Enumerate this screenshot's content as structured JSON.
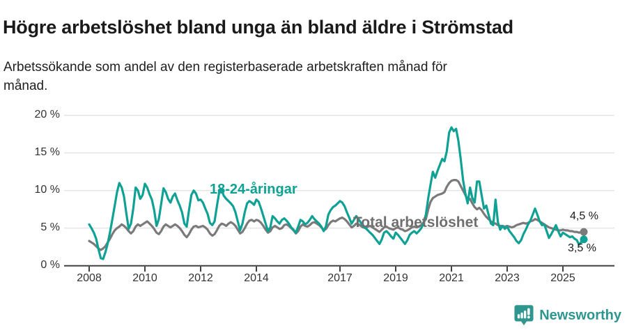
{
  "header": {
    "title": "Högre arbetslöshet bland unga än bland äldre i Strömstad",
    "subtitle_lines": [
      "Arbetssökande som andel av den registerbaserade arbetskraften månad för",
      "månad."
    ]
  },
  "chart_data": {
    "type": "line",
    "title": "Högre arbetslöshet bland unga än bland äldre i Strömstad",
    "subtitle": "Arbetssökande som andel av den registerbaserade arbetskraften månad för månad.",
    "unit": "%",
    "x_start": "2008-01",
    "x_end": "2025-10",
    "x_frequency": "monthly",
    "ylim": [
      0,
      20
    ],
    "yticks": [
      0,
      5,
      10,
      15,
      20
    ],
    "ytick_labels": [
      "0 %",
      "5 %",
      "10 %",
      "15 %",
      "20 %"
    ],
    "xticks": [
      2008,
      2010,
      2012,
      2014,
      2017,
      2019,
      2021,
      2023,
      2025
    ],
    "grid": "horizontal",
    "legend_position": "inline-labels",
    "axis_color": "#404040",
    "grid_color": "#dedede",
    "series": [
      {
        "name": "18-24-åringar",
        "color": "#0fa294",
        "end_label": "3,5 %",
        "end_value": 3.5,
        "values": [
          5.5,
          5.0,
          4.4,
          3.6,
          2.2,
          1.0,
          0.9,
          1.8,
          3.0,
          4.5,
          6.2,
          8.0,
          9.8,
          11.0,
          10.4,
          9.2,
          7.0,
          4.9,
          5.6,
          7.6,
          10.4,
          10.0,
          8.9,
          9.4,
          10.9,
          10.4,
          9.5,
          8.8,
          7.4,
          5.3,
          6.2,
          8.2,
          10.3,
          9.8,
          8.9,
          8.4,
          9.2,
          9.6,
          8.7,
          8.0,
          7.1,
          5.6,
          5.2,
          7.4,
          9.4,
          10.0,
          9.6,
          8.7,
          8.8,
          8.4,
          7.6,
          6.9,
          5.7,
          5.4,
          5.9,
          7.9,
          9.8,
          10.1,
          9.3,
          8.9,
          8.6,
          8.3,
          7.9,
          7.1,
          5.9,
          4.7,
          5.6,
          7.1,
          8.3,
          8.6,
          8.4,
          8.1,
          8.8,
          8.5,
          7.6,
          6.6,
          5.6,
          4.6,
          5.1,
          6.6,
          6.3,
          5.9,
          5.6,
          6.1,
          6.3,
          6.0,
          5.6,
          5.1,
          4.8,
          4.4,
          5.2,
          6.1,
          5.9,
          5.5,
          5.7,
          6.1,
          6.6,
          6.2,
          5.9,
          5.6,
          5.2,
          4.6,
          5.3,
          6.8,
          7.4,
          7.8,
          8.0,
          8.3,
          8.6,
          8.4,
          7.9,
          7.1,
          6.4,
          5.6,
          6.1,
          6.6,
          6.2,
          5.7,
          5.3,
          5.0,
          4.7,
          4.4,
          4.1,
          3.7,
          3.3,
          2.9,
          3.5,
          4.4,
          4.6,
          4.3,
          3.9,
          3.6,
          4.4,
          4.1,
          3.7,
          3.3,
          2.9,
          3.4,
          4.1,
          4.4,
          4.6,
          4.3,
          4.6,
          5.0,
          5.6,
          6.8,
          9.0,
          10.8,
          12.5,
          11.7,
          12.6,
          13.4,
          14.2,
          13.9,
          15.2,
          17.7,
          18.4,
          17.9,
          18.2,
          16.6,
          14.2,
          11.4,
          9.6,
          8.3,
          10.4,
          9.0,
          8.4,
          11.2,
          11.2,
          9.4,
          7.6,
          8.0,
          6.8,
          5.6,
          5.4,
          8.8,
          5.8,
          4.8,
          5.3,
          4.9,
          5.2,
          4.6,
          4.2,
          3.8,
          3.3,
          3.0,
          3.4,
          4.2,
          4.8,
          5.5,
          6.0,
          6.8,
          7.6,
          6.8,
          5.9,
          5.4,
          5.5,
          4.6,
          3.7,
          4.2,
          4.8,
          5.4,
          4.6,
          3.9,
          4.4,
          4.2,
          4.0,
          3.8,
          3.9,
          3.6,
          3.4,
          2.8,
          3.2,
          3.5
        ]
      },
      {
        "name": "Total arbetslöshet",
        "color": "#7a7a7a",
        "end_label": "4,5 %",
        "end_value": 4.5,
        "values": [
          3.3,
          3.1,
          2.9,
          2.6,
          2.3,
          2.1,
          2.3,
          2.6,
          3.1,
          3.6,
          4.2,
          4.7,
          5.0,
          5.2,
          5.5,
          5.3,
          5.0,
          4.6,
          4.3,
          4.6,
          5.2,
          5.5,
          5.3,
          5.5,
          5.7,
          5.9,
          5.6,
          5.3,
          4.9,
          4.4,
          4.2,
          4.6,
          5.2,
          5.5,
          5.3,
          5.1,
          5.3,
          5.5,
          5.3,
          5.0,
          4.6,
          4.1,
          3.8,
          4.2,
          4.8,
          5.2,
          5.3,
          5.1,
          5.2,
          5.3,
          5.1,
          4.8,
          4.3,
          4.0,
          4.2,
          4.7,
          5.3,
          5.6,
          5.5,
          5.3,
          5.6,
          5.8,
          5.6,
          5.3,
          4.8,
          4.3,
          4.5,
          5.0,
          5.6,
          6.0,
          6.1,
          5.9,
          6.1,
          6.0,
          5.7,
          5.3,
          4.8,
          4.4,
          4.6,
          5.1,
          5.3,
          5.1,
          4.9,
          5.0,
          5.4,
          5.5,
          5.3,
          5.0,
          4.7,
          4.3,
          4.6,
          5.2,
          5.5,
          5.3,
          5.2,
          5.4,
          5.7,
          5.8,
          5.6,
          5.4,
          5.1,
          4.7,
          4.9,
          5.4,
          5.8,
          6.0,
          5.9,
          6.1,
          6.3,
          6.4,
          6.2,
          5.9,
          5.5,
          5.1,
          5.3,
          5.6,
          5.5,
          5.3,
          5.1,
          5.0,
          5.2,
          5.3,
          5.1,
          4.9,
          4.7,
          4.5,
          4.8,
          5.1,
          5.2,
          5.0,
          4.9,
          4.8,
          5.0,
          5.1,
          4.9,
          4.8,
          4.6,
          4.7,
          4.9,
          5.1,
          5.2,
          5.1,
          5.2,
          5.4,
          5.8,
          6.2,
          7.5,
          8.5,
          9.0,
          9.2,
          9.4,
          9.5,
          9.6,
          9.8,
          10.5,
          11.0,
          11.3,
          11.4,
          11.4,
          11.2,
          10.6,
          10.0,
          9.4,
          8.8,
          8.9,
          8.3,
          7.8,
          7.5,
          7.7,
          7.4,
          6.9,
          6.5,
          6.2,
          5.9,
          5.7,
          5.6,
          5.4,
          5.3,
          5.3,
          5.2,
          5.3,
          5.2,
          5.1,
          5.2,
          5.4,
          5.5,
          5.6,
          5.7,
          5.6,
          5.7,
          5.9,
          6.0,
          6.2,
          6.1,
          5.9,
          5.7,
          5.5,
          5.3,
          5.1,
          5.0,
          4.9,
          4.8,
          4.7,
          4.7,
          4.8,
          4.7,
          4.7,
          4.6,
          4.6,
          4.5,
          4.5,
          4.4,
          4.5,
          4.5
        ]
      }
    ]
  },
  "footer": {
    "brand": "Newsworthy",
    "brand_color": "#2e968f",
    "logo_icon": "bar-chart-speech-bubble-icon"
  }
}
